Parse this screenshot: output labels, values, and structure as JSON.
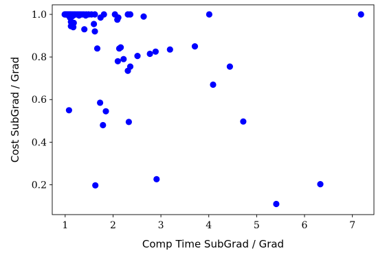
{
  "chart_data": {
    "type": "scatter",
    "title": "",
    "xlabel": "Comp Time SubGrad / Grad",
    "ylabel": "Cost SubGrad / Grad",
    "xlim": [
      0.73,
      7.45
    ],
    "ylim": [
      0.06,
      1.045
    ],
    "xticks": [
      1,
      2,
      3,
      4,
      5,
      6,
      7
    ],
    "yticks": [
      0.2,
      0.4,
      0.6,
      0.8,
      1.0
    ],
    "xtick_labels": [
      "1",
      "2",
      "3",
      "4",
      "5",
      "6",
      "7"
    ],
    "ytick_labels": [
      "0.2",
      "0.4",
      "0.6",
      "0.8",
      "1.0"
    ],
    "grid": false,
    "marker_color": "#0000ff",
    "points": [
      [
        0.99,
        1.0
      ],
      [
        1.0,
        1.0
      ],
      [
        1.01,
        1.0
      ],
      [
        1.02,
        1.0
      ],
      [
        1.03,
        1.0
      ],
      [
        1.04,
        1.0
      ],
      [
        1.05,
        1.0
      ],
      [
        1.06,
        1.0
      ],
      [
        1.07,
        1.0
      ],
      [
        1.08,
        1.0
      ],
      [
        1.09,
        1.0
      ],
      [
        1.1,
        1.0
      ],
      [
        1.11,
        1.0
      ],
      [
        1.12,
        1.0
      ],
      [
        1.14,
        1.0
      ],
      [
        1.16,
        1.0
      ],
      [
        1.18,
        1.0
      ],
      [
        1.2,
        1.0
      ],
      [
        1.22,
        1.0
      ],
      [
        1.25,
        1.0
      ],
      [
        1.28,
        1.0
      ],
      [
        1.31,
        1.0
      ],
      [
        1.35,
        1.0
      ],
      [
        1.39,
        1.0
      ],
      [
        1.44,
        1.0
      ],
      [
        1.49,
        1.0
      ],
      [
        1.55,
        1.0
      ],
      [
        1.62,
        1.0
      ],
      [
        1.07,
        0.995
      ],
      [
        1.17,
        0.995
      ],
      [
        1.29,
        0.995
      ],
      [
        1.43,
        0.995
      ],
      [
        1.1,
        0.985
      ],
      [
        1.14,
        0.99
      ],
      [
        1.12,
        0.965
      ],
      [
        1.15,
        0.955
      ],
      [
        1.18,
        0.96
      ],
      [
        1.12,
        0.945
      ],
      [
        1.17,
        0.94
      ],
      [
        1.4,
        0.93
      ],
      [
        1.6,
        0.955
      ],
      [
        1.62,
        0.92
      ],
      [
        1.74,
        0.985
      ],
      [
        1.81,
        1.0
      ],
      [
        2.04,
        1.0
      ],
      [
        2.09,
        0.975
      ],
      [
        2.11,
        0.985
      ],
      [
        2.31,
        1.0
      ],
      [
        2.36,
        1.0
      ],
      [
        2.64,
        0.99
      ],
      [
        4.01,
        1.0
      ],
      [
        7.18,
        1.0
      ],
      [
        1.67,
        0.84
      ],
      [
        2.13,
        0.84
      ],
      [
        2.16,
        0.845
      ],
      [
        2.1,
        0.78
      ],
      [
        2.22,
        0.79
      ],
      [
        2.31,
        0.735
      ],
      [
        2.36,
        0.755
      ],
      [
        2.51,
        0.805
      ],
      [
        2.77,
        0.815
      ],
      [
        2.89,
        0.825
      ],
      [
        3.19,
        0.835
      ],
      [
        3.71,
        0.85
      ],
      [
        4.44,
        0.755
      ],
      [
        4.09,
        0.67
      ],
      [
        1.08,
        0.55
      ],
      [
        1.73,
        0.585
      ],
      [
        1.85,
        0.545
      ],
      [
        1.79,
        0.48
      ],
      [
        2.33,
        0.495
      ],
      [
        4.72,
        0.497
      ],
      [
        1.63,
        0.197
      ],
      [
        2.91,
        0.226
      ],
      [
        5.41,
        0.11
      ],
      [
        6.33,
        0.203
      ]
    ]
  }
}
